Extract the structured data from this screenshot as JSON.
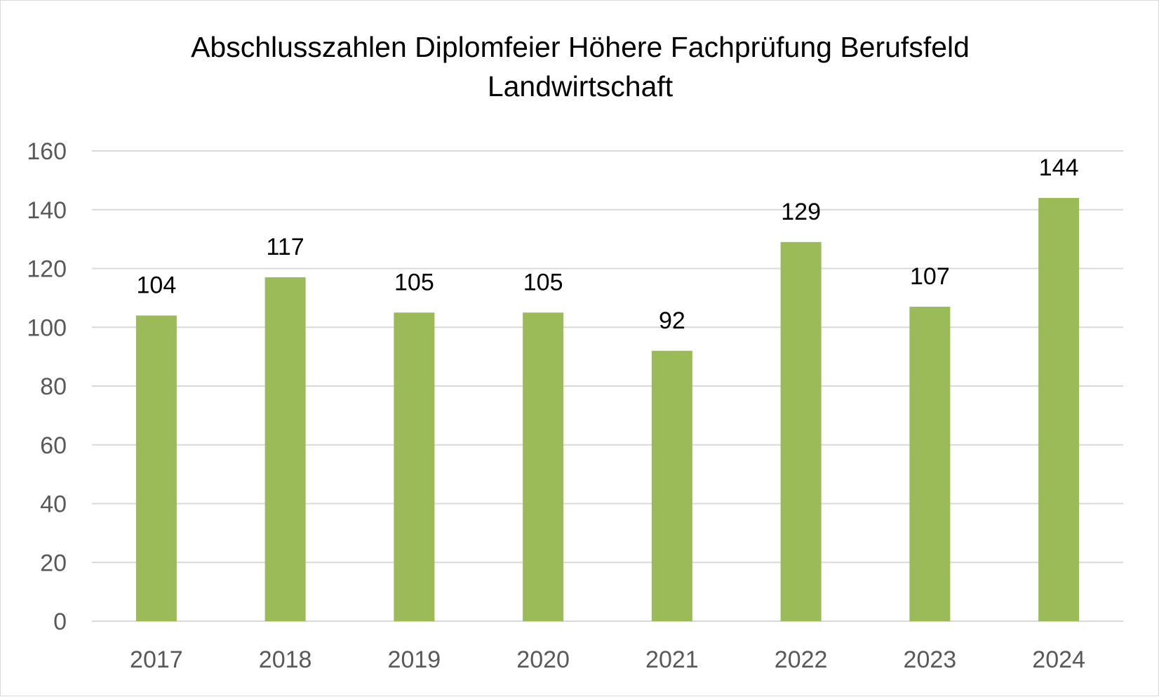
{
  "chart_data": {
    "type": "bar",
    "title_lines": [
      "Abschlusszahlen Diplomfeier Höhere Fachprüfung Berufsfeld",
      "Landwirtschaft"
    ],
    "categories": [
      "2017",
      "2018",
      "2019",
      "2020",
      "2021",
      "2022",
      "2023",
      "2024"
    ],
    "values": [
      104,
      117,
      105,
      105,
      92,
      129,
      107,
      144
    ],
    "data_labels": [
      "104",
      "117",
      "105",
      "105",
      "92",
      "129",
      "107",
      "144"
    ],
    "xlabel": "",
    "ylabel": "",
    "ylim": [
      0,
      160
    ],
    "yticks": [
      0,
      20,
      40,
      60,
      80,
      100,
      120,
      140,
      160
    ],
    "grid": true,
    "legend": "none",
    "bar_color": "#9bbb59",
    "grid_color": "#d9d9d9"
  }
}
